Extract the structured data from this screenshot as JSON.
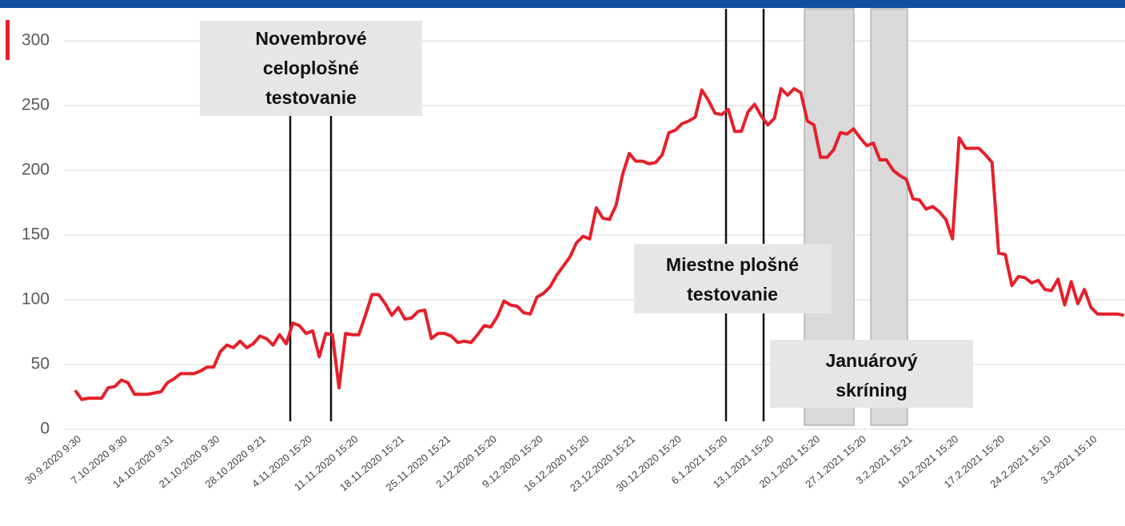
{
  "chart_data": {
    "type": "line",
    "categories": [
      "30.9.2020 9:30",
      null,
      null,
      null,
      null,
      null,
      null,
      "7.10.2020 9:30",
      null,
      null,
      null,
      null,
      null,
      null,
      "14.10.2020 9:31",
      null,
      null,
      null,
      null,
      null,
      null,
      "21.10.2020 9:30",
      null,
      null,
      null,
      null,
      null,
      null,
      "28.10.2020 9:21",
      null,
      null,
      null,
      null,
      null,
      null,
      "4.11.2020 15:20",
      null,
      null,
      null,
      null,
      null,
      null,
      "11.11.2020 15:20",
      null,
      null,
      null,
      null,
      null,
      null,
      "18.11.2020 15:21",
      null,
      null,
      null,
      null,
      null,
      null,
      "25.11.2020 15:21",
      null,
      null,
      null,
      null,
      null,
      null,
      "2.12.2020 15:20",
      null,
      null,
      null,
      null,
      null,
      null,
      "9.12.2020 15:20",
      null,
      null,
      null,
      null,
      null,
      null,
      "16.12.2020 15:20",
      null,
      null,
      null,
      null,
      null,
      null,
      "23.12.2020 15:21",
      null,
      null,
      null,
      null,
      null,
      null,
      "30.12.2020 15:20",
      null,
      null,
      null,
      null,
      null,
      null,
      "6.1.2021 15:20",
      null,
      null,
      null,
      null,
      null,
      null,
      "13.1.2021 15:20",
      null,
      null,
      null,
      null,
      null,
      null,
      "20.1.2021 15:20",
      null,
      null,
      null,
      null,
      null,
      null,
      "27.1.2021 15:20",
      null,
      null,
      null,
      null,
      null,
      null,
      "3.2.2021 15:21",
      null,
      null,
      null,
      null,
      null,
      null,
      "10.2.2021 15:20",
      null,
      null,
      null,
      null,
      null,
      null,
      "17.2.2021 15:20",
      null,
      null,
      null,
      null,
      null,
      null,
      "24.2.2021 15:10",
      null,
      null,
      null,
      null,
      null,
      null,
      "3.3.2021 15:10",
      null,
      null,
      null,
      null,
      null
    ],
    "series": [
      {
        "color": "#e5202a",
        "values": [
          30,
          23,
          24,
          24,
          24,
          32,
          33,
          38,
          36,
          27,
          27,
          27,
          28,
          29,
          36,
          39,
          43,
          43,
          43,
          45,
          48,
          48,
          60,
          65,
          63,
          68,
          63,
          66,
          72,
          70,
          65,
          73,
          66,
          82,
          80,
          74,
          76,
          56,
          74,
          73,
          32,
          74,
          73,
          73,
          88,
          104,
          104,
          97,
          88,
          94,
          85,
          86,
          91,
          92,
          70,
          74,
          74,
          72,
          67,
          68,
          67,
          73,
          80,
          79,
          87,
          99,
          96,
          95,
          90,
          89,
          102,
          105,
          110,
          119,
          126,
          133,
          144,
          149,
          147,
          171,
          163,
          162,
          173,
          197,
          213,
          207,
          207,
          205,
          206,
          212,
          229,
          231,
          236,
          238,
          241,
          262,
          254,
          244,
          243,
          247,
          230,
          230,
          245,
          251,
          242,
          235,
          240,
          263,
          258,
          263,
          260,
          238,
          235,
          210,
          210,
          216,
          229,
          228,
          232,
          225,
          219,
          221,
          208,
          208,
          200,
          196,
          193,
          178,
          177,
          170,
          172,
          168,
          162,
          147,
          225,
          217,
          217,
          217,
          212,
          206,
          136,
          135,
          111,
          118,
          117,
          113,
          115,
          108,
          107,
          116,
          96,
          114,
          97,
          108,
          94,
          89,
          89,
          89,
          89,
          88
        ]
      }
    ],
    "ylim": [
      0,
      300
    ],
    "yticks": [
      0,
      50,
      100,
      150,
      200,
      250,
      300
    ],
    "grid": true,
    "annotations": [
      {
        "lines": [
          "Novembrové",
          "celoplošné",
          "testovanie"
        ]
      },
      {
        "lines": [
          "Miestne plošné",
          "testovanie"
        ]
      },
      {
        "lines": [
          "Januárový",
          "skríning"
        ]
      }
    ]
  }
}
